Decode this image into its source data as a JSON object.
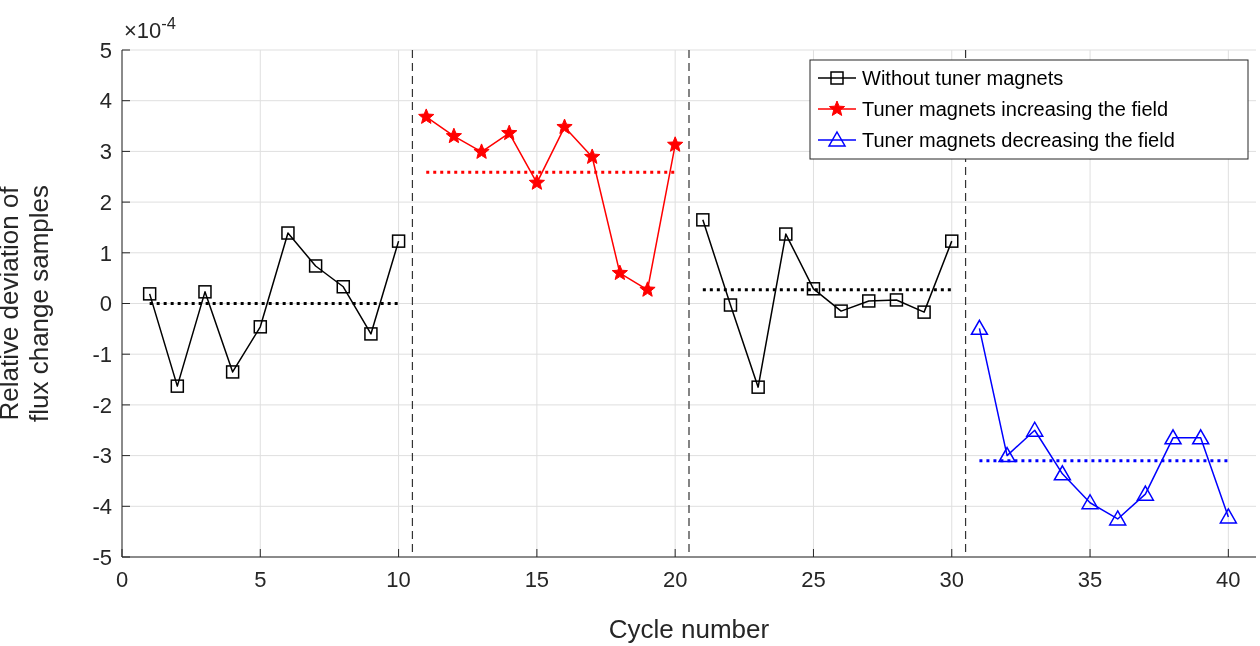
{
  "chart_data": {
    "type": "line",
    "xlabel": "Cycle number",
    "ylabel": "Relative deviation of\nflux change samples",
    "annotations": [
      "×10$^{-4}$"
    ],
    "xlim": [
      0,
      41
    ],
    "xticks": [
      0,
      5,
      10,
      15,
      20,
      25,
      30,
      35,
      40
    ],
    "ylim": [
      -5,
      5
    ],
    "yticks": [
      -5,
      -4,
      -3,
      -2,
      -1,
      0,
      1,
      2,
      3,
      4,
      5
    ],
    "grid": true,
    "legend": "top right",
    "ref_lines": [
      {
        "axis": "x",
        "value": 10.5,
        "color": "#333333",
        "line_style": "dashed"
      },
      {
        "axis": "x",
        "value": 20.5,
        "color": "#333333",
        "line_style": "dashed"
      },
      {
        "axis": "x",
        "value": 30.5,
        "color": "#333333",
        "line_style": "dashed"
      }
    ],
    "series": [
      {
        "name": "Without tuner magnets",
        "color": "#000000",
        "marker": "square",
        "line_style": "solid",
        "x": [
          1,
          2,
          3,
          4,
          5,
          6,
          7,
          8,
          9,
          10
        ],
        "values": [
          0.19,
          -1.63,
          0.23,
          -1.35,
          -0.46,
          1.39,
          0.74,
          0.33,
          -0.6,
          1.23
        ]
      },
      {
        "name": "Tuner magnets increasing the field",
        "color": "#ff0000",
        "marker": "star",
        "line_style": "solid",
        "x": [
          11,
          12,
          13,
          14,
          15,
          16,
          17,
          18,
          19,
          20
        ],
        "values": [
          3.68,
          3.3,
          2.99,
          3.36,
          2.38,
          3.48,
          2.89,
          0.6,
          0.27,
          3.13
        ]
      },
      {
        "name": "Tuner magnets decreasing the field",
        "color": "#0000ff",
        "marker": "triangle",
        "line_style": "solid",
        "x": [
          31,
          32,
          33,
          34,
          35,
          36,
          37,
          38,
          39,
          40
        ],
        "values": [
          -0.49,
          -3.0,
          -2.5,
          -3.36,
          -3.93,
          -4.25,
          -3.76,
          -2.65,
          -2.65,
          -4.21
        ]
      },
      {
        "color": "#000000",
        "marker": "square",
        "line_style": "solid",
        "x": [
          21,
          22,
          23,
          24,
          25,
          26,
          27,
          28,
          29,
          30
        ],
        "values": [
          1.65,
          -0.03,
          -1.65,
          1.37,
          0.29,
          -0.15,
          0.05,
          0.07,
          -0.17,
          1.23
        ]
      },
      {
        "color": "#000000",
        "marker": "none",
        "line_style": "dotted",
        "x": [
          1,
          10
        ],
        "values": [
          0,
          0
        ]
      },
      {
        "color": "#ff0000",
        "marker": "none",
        "line_style": "dotted",
        "x": [
          11,
          20
        ],
        "values": [
          2.59,
          2.59
        ]
      },
      {
        "color": "#000000",
        "marker": "none",
        "line_style": "dotted",
        "x": [
          21,
          30
        ],
        "values": [
          0.27,
          0.27
        ]
      },
      {
        "color": "#0000ff",
        "marker": "none",
        "line_style": "dotted",
        "x": [
          31,
          40
        ],
        "values": [
          -3.1,
          -3.1
        ]
      }
    ]
  }
}
